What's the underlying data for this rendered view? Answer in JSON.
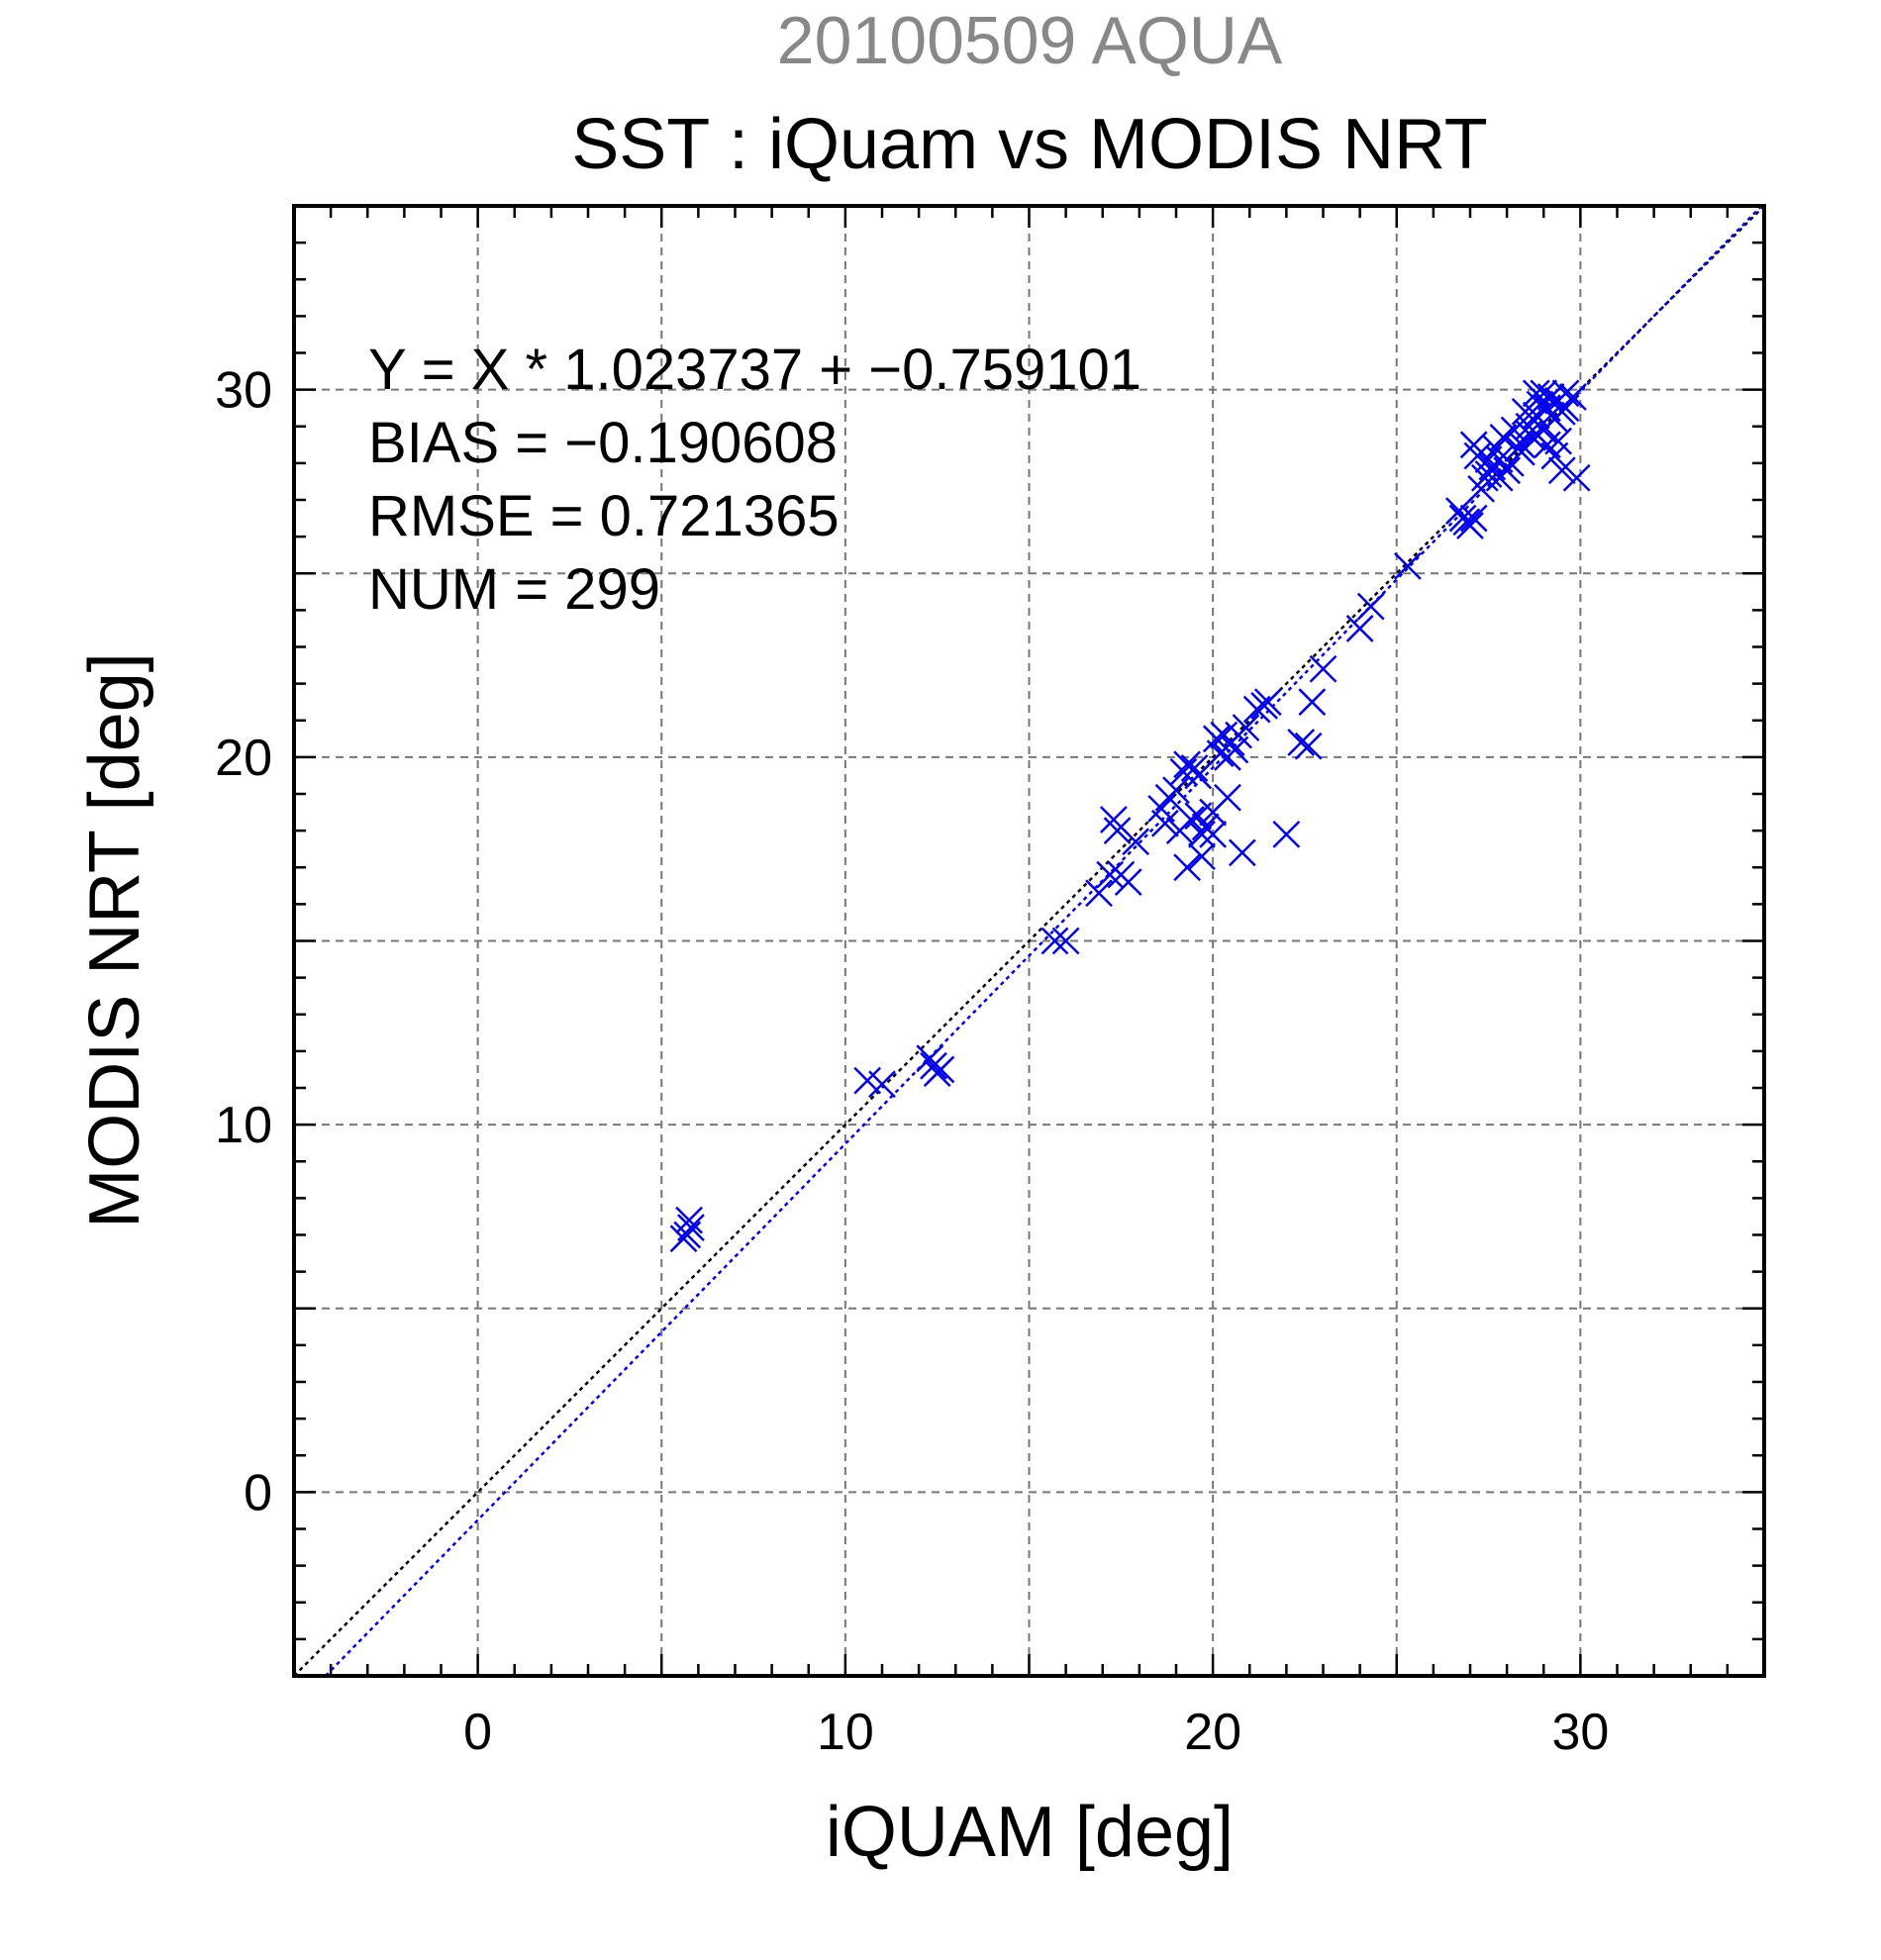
{
  "chart_data": {
    "type": "scatter",
    "supertitle": "20100509 AQUA",
    "title": "SST : iQuam vs MODIS NRT",
    "xlabel": "iQUAM [deg]",
    "ylabel": "MODIS NRT [deg]",
    "xlim": [
      -5,
      35
    ],
    "ylim": [
      -5,
      35
    ],
    "x_ticks": [
      0,
      10,
      20,
      30
    ],
    "y_ticks": [
      0,
      10,
      20,
      30
    ],
    "grid": true,
    "stats": [
      "Y = X * 1.023737 + −0.759101",
      "BIAS = −0.190608",
      "RMSE = 0.721365",
      "NUM = 299"
    ],
    "colors": {
      "points": "#0000ee",
      "fit_line": "#0000ee",
      "identity_line": "#000000",
      "supertitle": "#888888"
    },
    "lines": [
      {
        "kind": "identity",
        "slope": 1.0,
        "intercept": 0.0
      },
      {
        "kind": "fit",
        "slope": 1.023737,
        "intercept": -0.759101
      }
    ],
    "points": [
      [
        5.7,
        7.0
      ],
      [
        5.8,
        7.2
      ],
      [
        5.6,
        6.9
      ],
      [
        5.75,
        7.4
      ],
      [
        10.6,
        11.2
      ],
      [
        11.0,
        11.1
      ],
      [
        12.4,
        11.6
      ],
      [
        12.5,
        11.4
      ],
      [
        12.3,
        11.8
      ],
      [
        12.6,
        11.5
      ],
      [
        15.7,
        15.0
      ],
      [
        16.0,
        15.0
      ],
      [
        16.9,
        16.3
      ],
      [
        17.2,
        16.8
      ],
      [
        17.5,
        16.8
      ],
      [
        17.7,
        16.6
      ],
      [
        17.3,
        18.3
      ],
      [
        17.4,
        18.0
      ],
      [
        17.9,
        17.7
      ],
      [
        18.6,
        18.6
      ],
      [
        18.8,
        18.9
      ],
      [
        19.0,
        19.1
      ],
      [
        18.7,
        18.2
      ],
      [
        19.1,
        18.0
      ],
      [
        19.2,
        19.6
      ],
      [
        19.3,
        19.8
      ],
      [
        19.5,
        19.7
      ],
      [
        19.6,
        19.5
      ],
      [
        19.4,
        18.3
      ],
      [
        19.6,
        18.4
      ],
      [
        19.8,
        18.1
      ],
      [
        20.0,
        17.9
      ],
      [
        19.7,
        17.9
      ],
      [
        19.3,
        17.0
      ],
      [
        19.7,
        17.3
      ],
      [
        20.0,
        18.5
      ],
      [
        20.4,
        18.9
      ],
      [
        20.8,
        17.4
      ],
      [
        20.1,
        20.5
      ],
      [
        20.3,
        20.6
      ],
      [
        20.5,
        20.4
      ],
      [
        20.7,
        20.6
      ],
      [
        20.9,
        20.8
      ],
      [
        20.2,
        20.1
      ],
      [
        20.6,
        20.2
      ],
      [
        20.4,
        20.0
      ],
      [
        21.2,
        21.3
      ],
      [
        21.5,
        21.5
      ],
      [
        21.4,
        21.4
      ],
      [
        22.0,
        17.9
      ],
      [
        22.4,
        20.4
      ],
      [
        22.6,
        20.3
      ],
      [
        22.7,
        21.5
      ],
      [
        23.0,
        22.4
      ],
      [
        24.0,
        23.5
      ],
      [
        24.3,
        24.1
      ],
      [
        25.3,
        25.2
      ],
      [
        26.7,
        26.7
      ],
      [
        26.9,
        26.4
      ],
      [
        27.0,
        26.3
      ],
      [
        27.1,
        26.5
      ],
      [
        26.8,
        26.5
      ],
      [
        27.3,
        27.3
      ],
      [
        27.5,
        27.7
      ],
      [
        27.6,
        27.9
      ],
      [
        27.8,
        28.1
      ],
      [
        28.0,
        27.8
      ],
      [
        27.2,
        28.2
      ],
      [
        27.4,
        27.6
      ],
      [
        27.7,
        28.4
      ],
      [
        28.1,
        28.0
      ],
      [
        28.3,
        28.4
      ],
      [
        27.9,
        28.7
      ],
      [
        28.2,
        28.9
      ],
      [
        28.4,
        28.5
      ],
      [
        28.6,
        29.0
      ],
      [
        28.8,
        29.3
      ],
      [
        28.7,
        28.7
      ],
      [
        28.9,
        29.6
      ],
      [
        29.1,
        29.5
      ],
      [
        29.2,
        29.8
      ],
      [
        29.4,
        29.7
      ],
      [
        29.0,
        28.9
      ],
      [
        29.3,
        29.2
      ],
      [
        29.5,
        29.4
      ],
      [
        29.6,
        29.9
      ],
      [
        29.8,
        29.8
      ],
      [
        29.1,
        28.5
      ],
      [
        29.3,
        28.2
      ],
      [
        29.4,
        28.6
      ],
      [
        29.5,
        27.8
      ],
      [
        29.9,
        27.6
      ],
      [
        28.5,
        29.4
      ],
      [
        28.8,
        29.9
      ],
      [
        29.0,
        29.9
      ],
      [
        29.2,
        29.3
      ],
      [
        29.6,
        29.5
      ],
      [
        27.1,
        28.5
      ],
      [
        27.5,
        28.1
      ],
      [
        27.8,
        27.6
      ],
      [
        28.4,
        28.3
      ],
      [
        28.6,
        28.8
      ]
    ]
  }
}
